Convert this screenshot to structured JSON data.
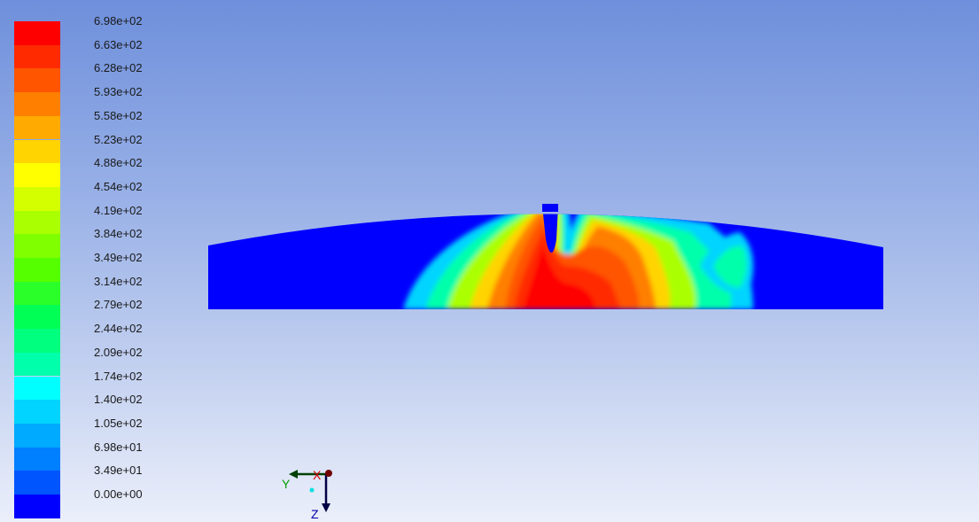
{
  "legend": {
    "labels": [
      "6.98e+02",
      "6.63e+02",
      "6.28e+02",
      "5.93e+02",
      "5.58e+02",
      "5.23e+02",
      "4.88e+02",
      "4.54e+02",
      "4.19e+02",
      "3.84e+02",
      "3.49e+02",
      "3.14e+02",
      "2.79e+02",
      "2.44e+02",
      "2.09e+02",
      "1.74e+02",
      "1.40e+02",
      "1.05e+02",
      "6.98e+01",
      "3.49e+01",
      "0.00e+00"
    ],
    "colors": [
      "#ff0000",
      "#ff2a00",
      "#ff5500",
      "#ff7f00",
      "#ffaa00",
      "#ffd400",
      "#ffff00",
      "#d4ff00",
      "#aaff00",
      "#7fff00",
      "#55ff00",
      "#2aff2a",
      "#00ff55",
      "#00ff7f",
      "#00ffaa",
      "#00ffff",
      "#00d4ff",
      "#00aaff",
      "#007fff",
      "#0055ff",
      "#0000ff"
    ]
  },
  "triad": {
    "x_label": "X",
    "y_label": "Y",
    "z_label": "Z",
    "x_color": "#d40000",
    "y_color": "#00a000",
    "z_color": "#0000aa"
  },
  "contour": {
    "background_color": "#0000ff"
  }
}
